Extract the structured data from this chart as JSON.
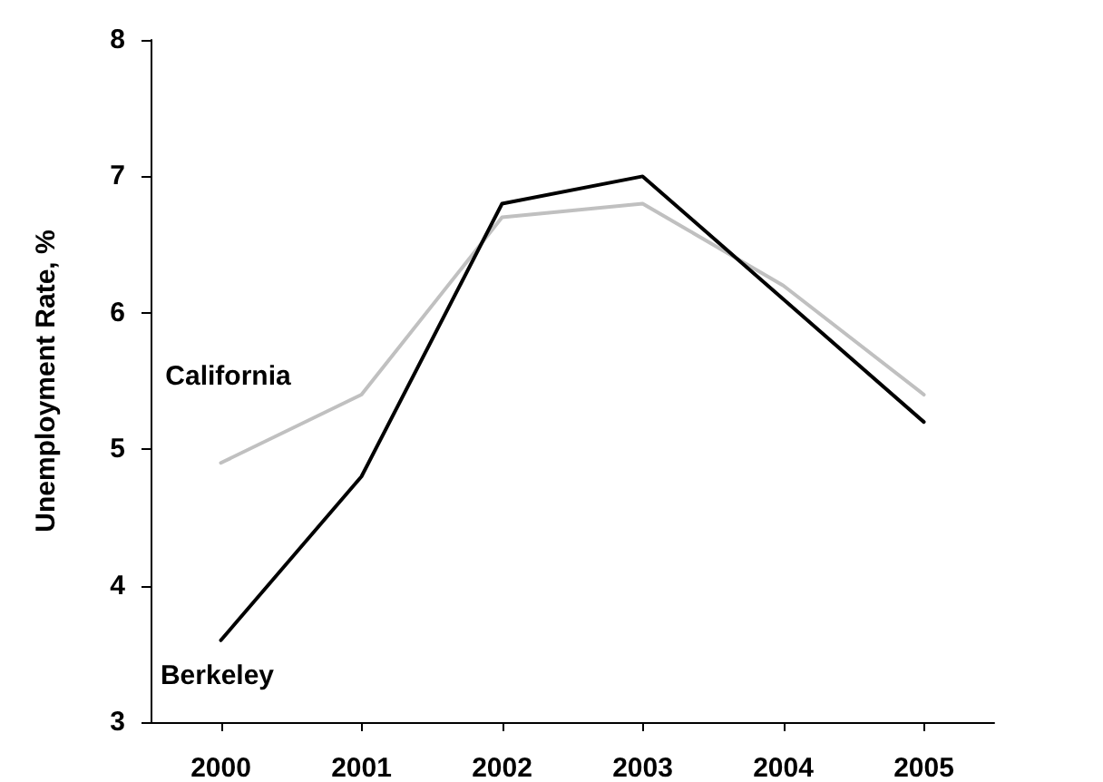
{
  "chart_data": {
    "type": "line",
    "ylabel": "Unemployment Rate, %",
    "categories": [
      "2000",
      "2001",
      "2002",
      "2003",
      "2004",
      "2005"
    ],
    "series": [
      {
        "name": "California",
        "color": "#c0c0c0",
        "values": [
          4.9,
          5.4,
          6.7,
          6.8,
          6.2,
          5.4
        ]
      },
      {
        "name": "Berkeley",
        "color": "#000000",
        "values": [
          3.6,
          4.8,
          6.8,
          7.0,
          6.1,
          5.2
        ]
      }
    ],
    "ylim": [
      3,
      8
    ],
    "yticks": [
      3,
      4,
      5,
      6,
      7,
      8
    ],
    "grid": false,
    "legend": false,
    "marker": "none",
    "line_style": "solid"
  }
}
